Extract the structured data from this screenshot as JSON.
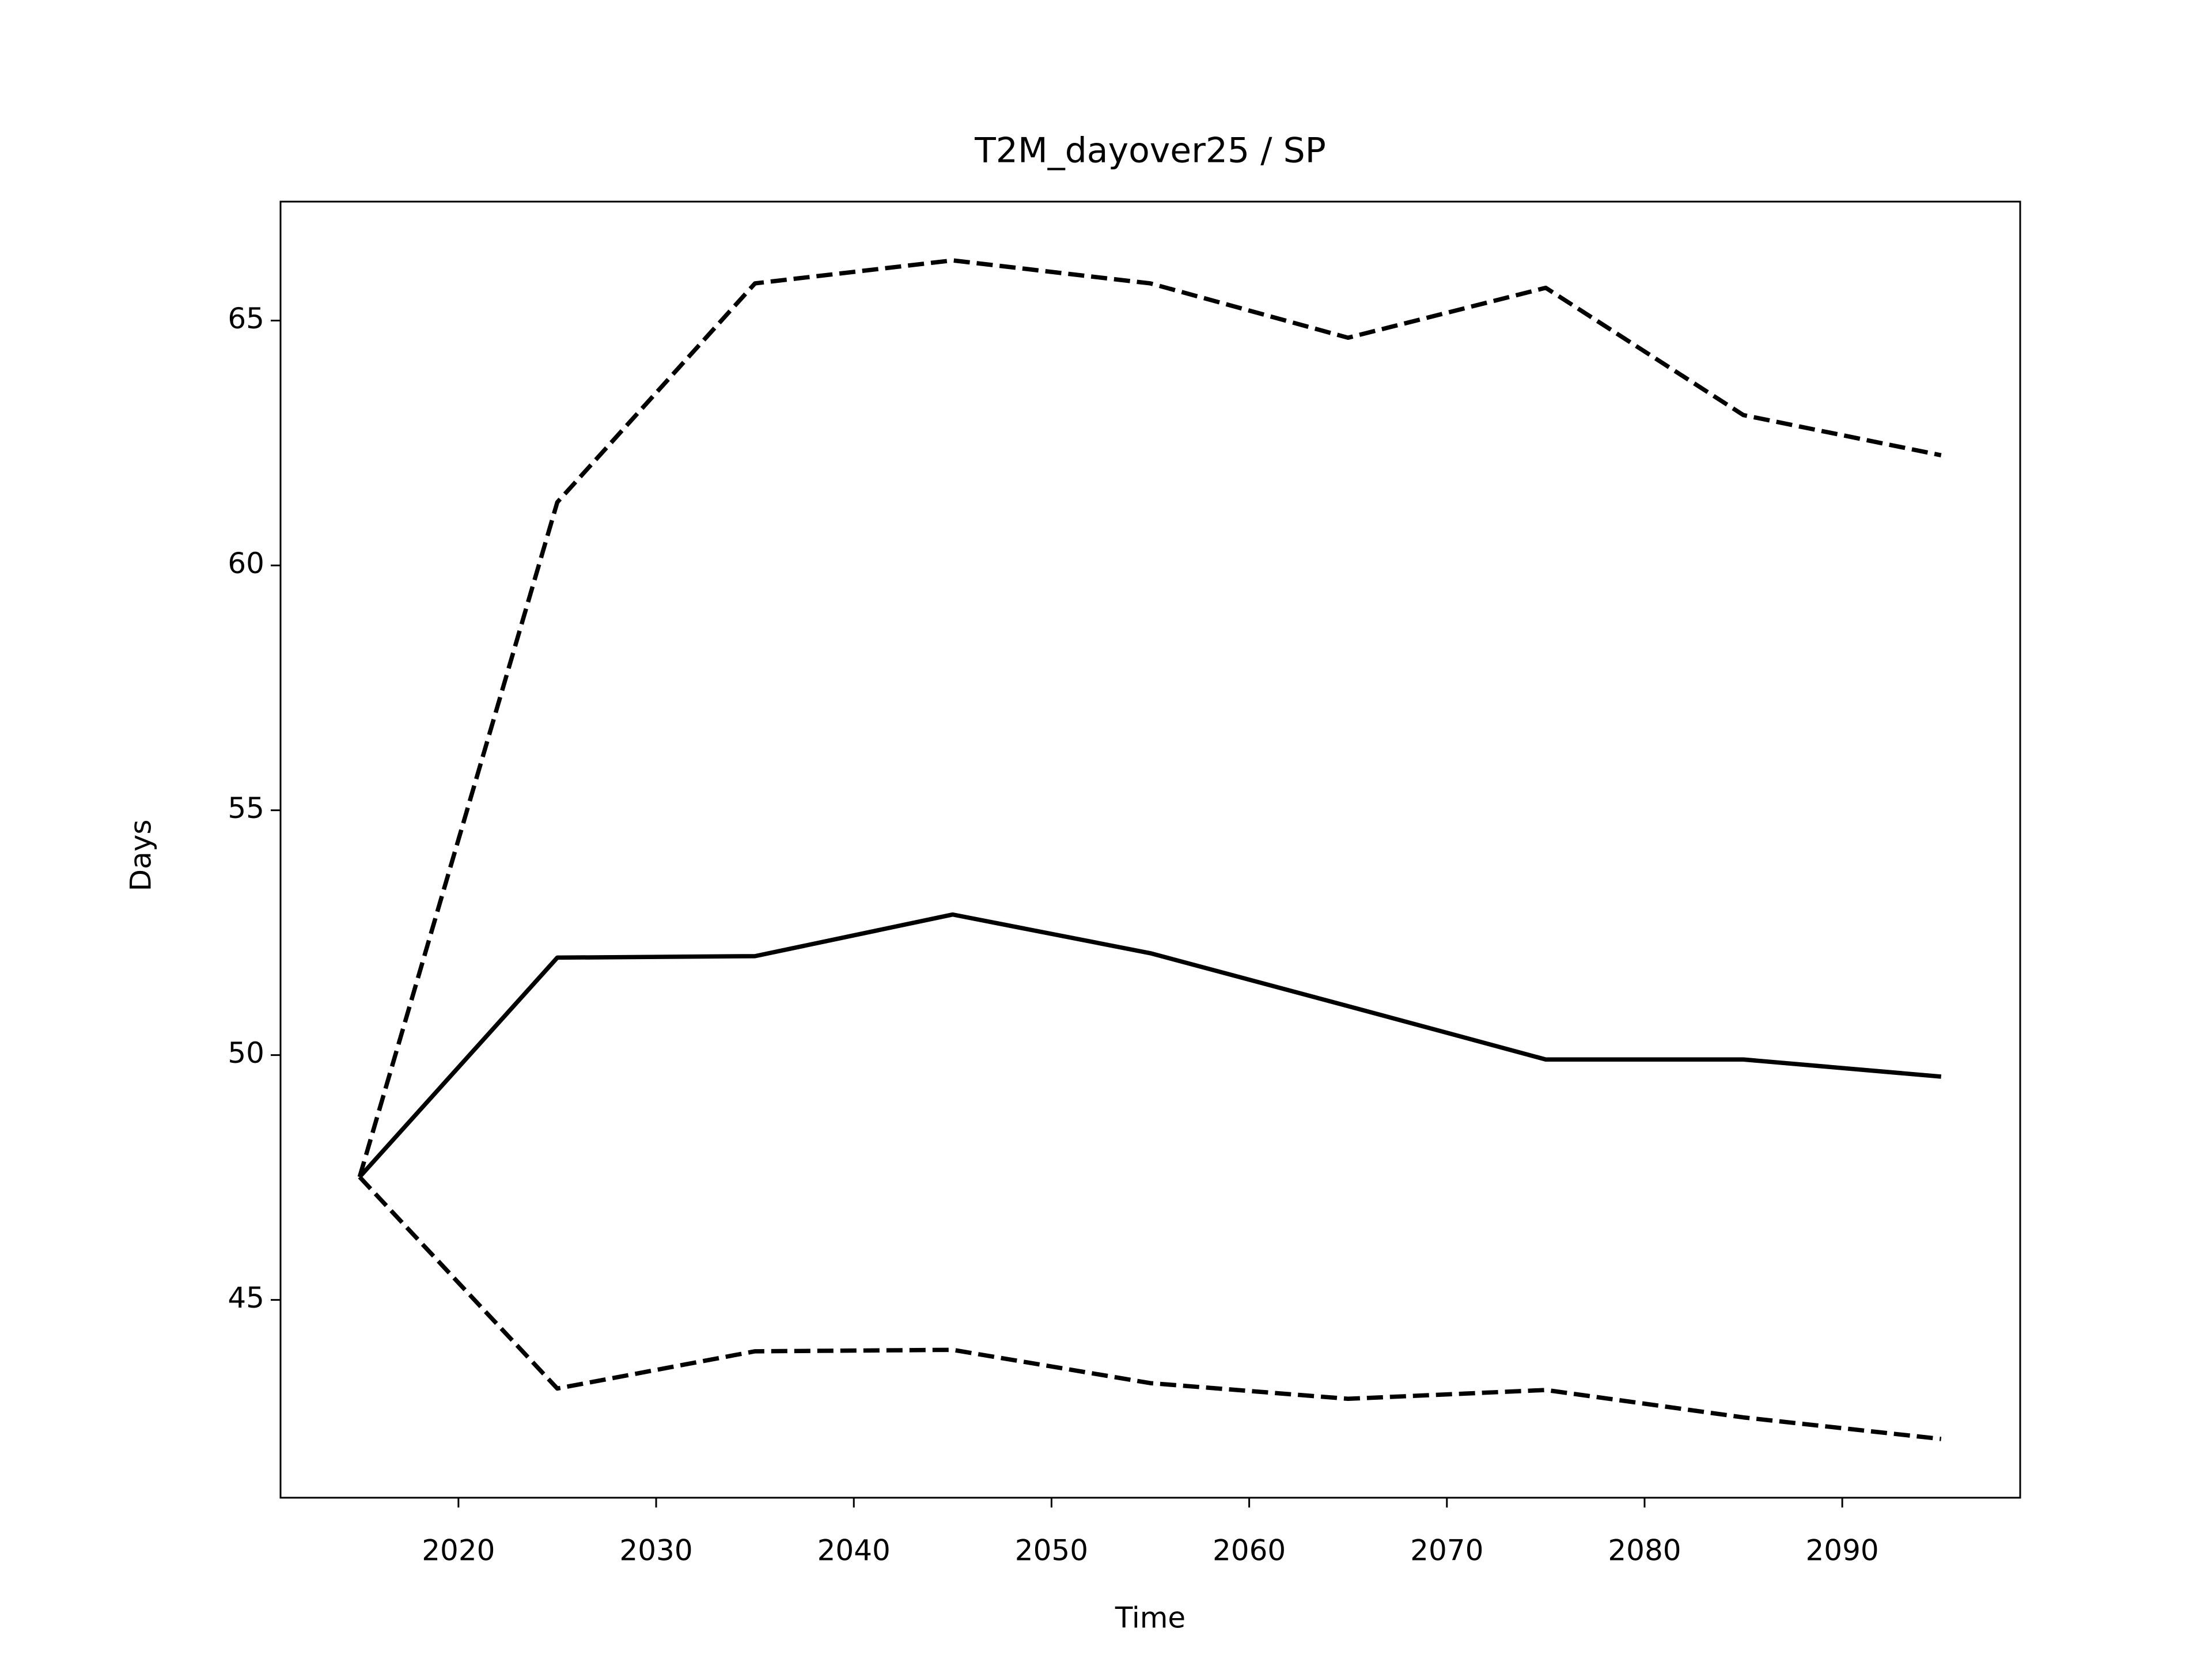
{
  "chart_data": {
    "type": "line",
    "title": "T2M_dayover25 / SP",
    "xlabel": "Time",
    "ylabel": "Days",
    "x": [
      2015,
      2025,
      2035,
      2045,
      2055,
      2065,
      2075,
      2085,
      2095
    ],
    "series": [
      {
        "color": "#000000",
        "dash": false,
        "values": [
          47.51,
          51.99,
          52.02,
          52.87,
          52.08,
          51.0,
          49.91,
          49.91,
          49.56
        ]
      },
      {
        "color": "#000000",
        "dash": true,
        "values": [
          47.51,
          61.29,
          65.76,
          66.23,
          65.76,
          64.65,
          65.67,
          63.07,
          62.25
        ]
      },
      {
        "color": "#000000",
        "dash": true,
        "values": [
          47.51,
          43.19,
          43.95,
          43.98,
          43.3,
          42.98,
          43.16,
          42.6,
          42.16
        ]
      }
    ],
    "xlim": [
      2011,
      2099
    ],
    "xticks": [
      2020,
      2030,
      2040,
      2050,
      2060,
      2070,
      2080,
      2090
    ],
    "ylim": [
      40.96,
      67.43
    ],
    "yticks": [
      45,
      50,
      55,
      60,
      65
    ],
    "grid": false
  }
}
